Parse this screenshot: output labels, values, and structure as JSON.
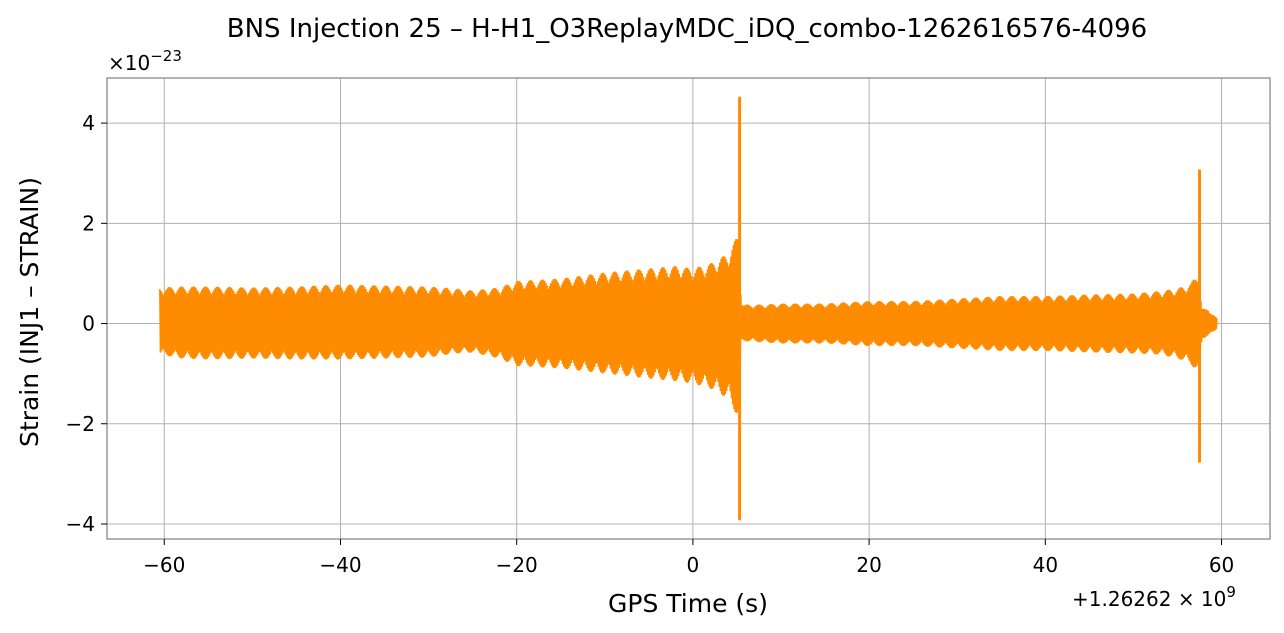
{
  "chart_data": {
    "type": "line",
    "title": "BNS Injection 25 – H-H1_O3ReplayMDC_iDQ_combo-1262616576-4096",
    "xlabel": "GPS Time (s)",
    "ylabel": "Strain (INJ1 – STRAIN)",
    "x_offset_label": "+1.26262 × 10",
    "x_offset_exponent": "9",
    "y_multiplier_label": "×10",
    "y_multiplier_exponent": "−23",
    "xlim": [
      -66.5,
      65.5
    ],
    "ylim": [
      -4.3,
      4.9
    ],
    "x_ticks": [
      -60,
      -40,
      -20,
      0,
      20,
      40,
      60
    ],
    "x_tick_labels": [
      "−60",
      "−40",
      "−20",
      "0",
      "20",
      "40",
      "60"
    ],
    "y_ticks": [
      -4,
      -2,
      0,
      2,
      4
    ],
    "y_tick_labels": [
      "−4",
      "−2",
      "0",
      "2",
      "4"
    ],
    "grid": true,
    "series": [
      {
        "color": "#ff8c00",
        "envelope": {
          "x": [
            -60.5,
            -58,
            -55,
            -50,
            -45,
            -40,
            -35,
            -30,
            -27,
            -25,
            -22,
            -20,
            -15,
            -10,
            -5,
            -2,
            0,
            2,
            4,
            5.2,
            5.5,
            5.8,
            8,
            10,
            15,
            20,
            25,
            30,
            35,
            40,
            45,
            50,
            53,
            55,
            56.5,
            57.3,
            57.8,
            58.5,
            59.5
          ],
          "upper": [
            0.72,
            0.74,
            0.74,
            0.72,
            0.74,
            0.78,
            0.76,
            0.74,
            0.7,
            0.66,
            0.72,
            0.85,
            0.9,
            1.02,
            1.1,
            1.15,
            1.1,
            1.2,
            1.4,
            1.8,
            0.45,
            0.38,
            0.38,
            0.4,
            0.4,
            0.45,
            0.45,
            0.5,
            0.55,
            0.55,
            0.58,
            0.6,
            0.65,
            0.7,
            0.8,
            1.0,
            0.3,
            0.28,
            0.1
          ],
          "lower": [
            -0.62,
            -0.7,
            -0.72,
            -0.7,
            -0.72,
            -0.72,
            -0.7,
            -0.68,
            -0.6,
            -0.58,
            -0.7,
            -0.85,
            -0.9,
            -1.0,
            -1.1,
            -1.15,
            -1.2,
            -1.3,
            -1.5,
            -1.9,
            -0.38,
            -0.35,
            -0.38,
            -0.4,
            -0.4,
            -0.45,
            -0.45,
            -0.5,
            -0.55,
            -0.55,
            -0.58,
            -0.6,
            -0.62,
            -0.7,
            -0.8,
            -1.0,
            -0.3,
            -0.25,
            -0.1
          ]
        },
        "spikes": [
          {
            "x": 5.3,
            "y_max": 4.5,
            "y_min": -3.9
          },
          {
            "x": 57.5,
            "y_max": 3.05,
            "y_min": -2.75
          }
        ]
      }
    ]
  }
}
